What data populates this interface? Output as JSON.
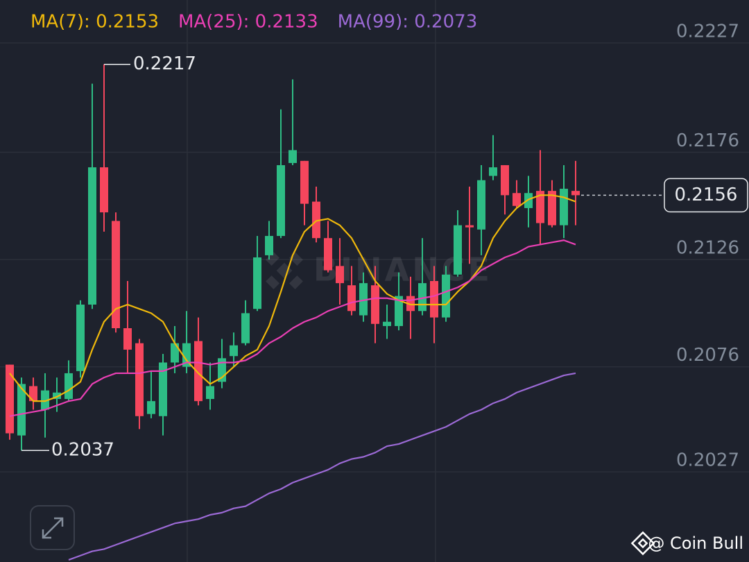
{
  "chart_data": {
    "type": "candlestick",
    "watermark": "BINANCE",
    "credit": "@ Coin Bull",
    "up_color": "#2ebd85",
    "down_color": "#f6465d",
    "open": [
      0.2077,
      0.2044,
      0.2067,
      0.2056,
      0.2061,
      0.2061,
      0.2074,
      0.2105,
      0.2169,
      0.2144,
      0.2094,
      0.2087,
      0.2054,
      0.2053,
      0.2078,
      0.2076,
      0.2088,
      0.2061,
      0.2069,
      0.2081,
      0.2087,
      0.2103,
      0.2128,
      0.2137,
      0.2171,
      0.2172,
      0.2153,
      0.2136,
      0.2123,
      0.2114,
      0.21,
      0.2114,
      0.2095,
      0.2095,
      0.2109,
      0.2102,
      0.2116,
      0.2099,
      0.2119,
      0.2142,
      0.214,
      0.2165,
      0.217,
      0.2157,
      0.215,
      0.2158,
      0.2158,
      0.2142,
      0.2158
    ],
    "high": [
      0.2077,
      0.2071,
      0.2071,
      0.2073,
      0.2071,
      0.2079,
      0.2107,
      0.2208,
      0.2217,
      0.2148,
      0.2116,
      0.2089,
      0.2074,
      0.2082,
      0.2095,
      0.2102,
      0.2099,
      0.2078,
      0.2089,
      0.2092,
      0.2107,
      0.2137,
      0.2144,
      0.2196,
      0.221,
      0.2172,
      0.216,
      0.2144,
      0.2136,
      0.2123,
      0.212,
      0.2123,
      0.2105,
      0.212,
      0.2118,
      0.2136,
      0.2123,
      0.2123,
      0.2149,
      0.216,
      0.217,
      0.2184,
      0.217,
      0.2163,
      0.2165,
      0.2177,
      0.2163,
      0.217,
      0.2172
    ],
    "low": [
      0.2042,
      0.2037,
      0.2056,
      0.2043,
      0.2055,
      0.206,
      0.2071,
      0.2103,
      0.2139,
      0.2092,
      0.2073,
      0.2047,
      0.2052,
      0.2044,
      0.2073,
      0.2073,
      0.2058,
      0.2056,
      0.2066,
      0.2076,
      0.2086,
      0.2102,
      0.2126,
      0.2136,
      0.217,
      0.2142,
      0.2134,
      0.212,
      0.2105,
      0.21,
      0.2097,
      0.2087,
      0.2089,
      0.2093,
      0.2089,
      0.21,
      0.2087,
      0.2097,
      0.2118,
      0.2124,
      0.2128,
      0.2163,
      0.2147,
      0.215,
      0.2141,
      0.2133,
      0.2141,
      0.2136,
      0.2142
    ],
    "close": [
      0.2045,
      0.2068,
      0.206,
      0.2065,
      0.2064,
      0.2073,
      0.2105,
      0.2169,
      0.2148,
      0.2094,
      0.2084,
      0.2053,
      0.206,
      0.2078,
      0.2087,
      0.2087,
      0.206,
      0.2067,
      0.208,
      0.2086,
      0.2101,
      0.2127,
      0.2137,
      0.217,
      0.2177,
      0.2152,
      0.2136,
      0.2121,
      0.2115,
      0.2102,
      0.2115,
      0.2096,
      0.2097,
      0.2109,
      0.2102,
      0.2115,
      0.2099,
      0.2119,
      0.2142,
      0.2141,
      0.2163,
      0.2169,
      0.2156,
      0.2151,
      0.2157,
      0.2143,
      0.2142,
      0.2159,
      0.2156
    ],
    "series": [
      {
        "name": "MA(7): 0.2153",
        "color": "#f0b90b",
        "values": [
          0.2073,
          0.2066,
          0.206,
          0.206,
          0.2062,
          0.2065,
          0.2069,
          0.2084,
          0.2097,
          0.2103,
          0.2105,
          0.2103,
          0.2101,
          0.2097,
          0.2087,
          0.2079,
          0.2073,
          0.2068,
          0.2071,
          0.2076,
          0.2081,
          0.2084,
          0.2095,
          0.2111,
          0.2128,
          0.2139,
          0.2144,
          0.2145,
          0.2142,
          0.2136,
          0.2126,
          0.2116,
          0.211,
          0.2107,
          0.2105,
          0.2105,
          0.2105,
          0.2105,
          0.2111,
          0.2116,
          0.2123,
          0.2136,
          0.2144,
          0.215,
          0.2154,
          0.2156,
          0.2156,
          0.2155,
          0.2153
        ]
      },
      {
        "name": "MA(25): 0.2133",
        "color": "#eb40b5",
        "values": [
          0.2053,
          0.2054,
          0.2055,
          0.2056,
          0.2058,
          0.206,
          0.2061,
          0.2068,
          0.2071,
          0.2073,
          0.2073,
          0.2073,
          0.2074,
          0.2074,
          0.2076,
          0.2078,
          0.2078,
          0.2077,
          0.2078,
          0.2078,
          0.2079,
          0.2082,
          0.2087,
          0.209,
          0.2094,
          0.2097,
          0.2099,
          0.2102,
          0.2104,
          0.2106,
          0.2107,
          0.2108,
          0.2108,
          0.2107,
          0.2107,
          0.2108,
          0.2109,
          0.2111,
          0.2113,
          0.2116,
          0.2121,
          0.2124,
          0.2127,
          0.2129,
          0.2132,
          0.2133,
          0.2134,
          0.2135,
          0.2133
        ]
      },
      {
        "name": "MA(99): 0.2073",
        "color": "#9c6ad6",
        "values": [
          null,
          null,
          null,
          null,
          null,
          0.1986,
          0.1988,
          0.199,
          0.1991,
          0.1993,
          0.1995,
          0.1997,
          0.1999,
          0.2001,
          0.2003,
          0.2004,
          0.2005,
          0.2007,
          0.2008,
          0.201,
          0.2011,
          0.2014,
          0.2017,
          0.2019,
          0.2022,
          0.2024,
          0.2026,
          0.2028,
          0.2031,
          0.2033,
          0.2034,
          0.2036,
          0.2039,
          0.204,
          0.2042,
          0.2044,
          0.2046,
          0.2048,
          0.2051,
          0.2054,
          0.2056,
          0.2059,
          0.2061,
          0.2064,
          0.2066,
          0.2068,
          0.207,
          0.2072,
          0.2073
        ]
      }
    ],
    "ylim": [
      0.1985,
      0.2247
    ],
    "yticks": [
      0.2027,
      0.2076,
      0.2126,
      0.2176,
      0.2227
    ],
    "grid": true
  }
}
